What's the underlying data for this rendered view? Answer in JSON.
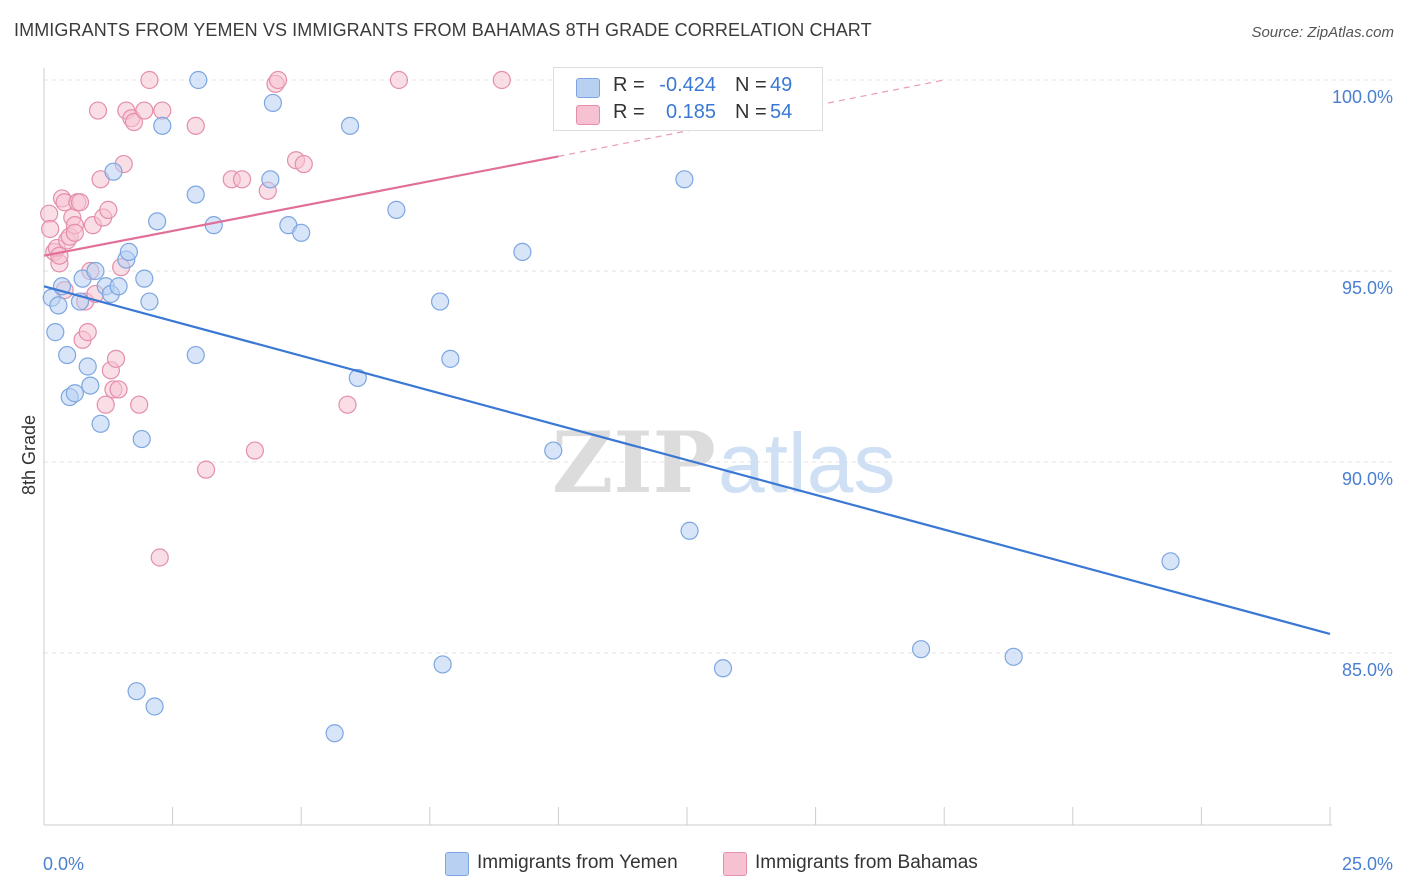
{
  "title": "IMMIGRANTS FROM YEMEN VS IMMIGRANTS FROM BAHAMAS 8TH GRADE CORRELATION CHART",
  "source": "Source: ZipAtlas.com",
  "watermark": {
    "zip": "ZIP",
    "atlas": "atlas"
  },
  "legend": [
    {
      "r_label": "R =",
      "r_value": "-0.424",
      "n_label": "N =",
      "n_value": "49",
      "fill": "#b8d0f2",
      "stroke": "#7da6e0"
    },
    {
      "r_label": "R =",
      "r_value": "0.185",
      "n_label": "N =",
      "n_value": "54",
      "fill": "#f6c2d2",
      "stroke": "#e48eab"
    }
  ],
  "bottom_legend": [
    "Immigrants from Yemen",
    "Immigrants from Bahamas"
  ],
  "colors": {
    "blue": "#3a78d4",
    "pink": "#e0709a",
    "blue_fill": "#b8d0f2",
    "pink_fill": "#f6c2d2",
    "tick_text": "#4a7fd0",
    "grid": "#e3e3e3"
  },
  "chart_data": {
    "type": "scatter",
    "title": "IMMIGRANTS FROM YEMEN VS IMMIGRANTS FROM BAHAMAS 8TH GRADE CORRELATION CHART",
    "xlabel": "",
    "ylabel": "8th Grade",
    "xlim": [
      0,
      25
    ],
    "ylim": [
      80,
      100.8
    ],
    "x_tick_labels": [
      "0.0%",
      "25.0%"
    ],
    "y_ticks": [
      85,
      90,
      95,
      100
    ],
    "y_tick_labels": [
      "85.0%",
      "90.0%",
      "95.0%",
      "100.0%"
    ],
    "series": [
      {
        "name": "Immigrants from Yemen",
        "r": -0.424,
        "n": 49,
        "trend": {
          "x": [
            0,
            25
          ],
          "y": [
            94.6,
            85.5
          ]
        },
        "points": [
          [
            0.15,
            94.3
          ],
          [
            0.22,
            93.4
          ],
          [
            0.28,
            94.1
          ],
          [
            0.35,
            94.6
          ],
          [
            0.45,
            92.8
          ],
          [
            0.5,
            91.7
          ],
          [
            0.6,
            91.8
          ],
          [
            0.7,
            94.2
          ],
          [
            0.75,
            94.8
          ],
          [
            0.85,
            92.5
          ],
          [
            0.9,
            92.0
          ],
          [
            1.0,
            95.0
          ],
          [
            1.1,
            91.0
          ],
          [
            1.2,
            94.6
          ],
          [
            1.3,
            94.4
          ],
          [
            1.35,
            97.6
          ],
          [
            1.45,
            94.6
          ],
          [
            1.6,
            95.3
          ],
          [
            1.65,
            95.5
          ],
          [
            1.9,
            90.6
          ],
          [
            1.95,
            94.8
          ],
          [
            2.05,
            94.2
          ],
          [
            2.2,
            96.3
          ],
          [
            2.3,
            98.8
          ],
          [
            2.95,
            97.0
          ],
          [
            2.95,
            92.8
          ],
          [
            3.0,
            100.0
          ],
          [
            3.3,
            96.2
          ],
          [
            4.4,
            97.4
          ],
          [
            4.45,
            99.4
          ],
          [
            4.75,
            96.2
          ],
          [
            5.0,
            96.0
          ],
          [
            5.95,
            98.8
          ],
          [
            6.1,
            92.2
          ],
          [
            6.85,
            96.6
          ],
          [
            7.7,
            94.2
          ],
          [
            7.9,
            92.7
          ],
          [
            9.3,
            95.5
          ],
          [
            9.9,
            90.3
          ],
          [
            12.45,
            97.4
          ],
          [
            12.55,
            88.2
          ],
          [
            1.8,
            84.0
          ],
          [
            2.15,
            83.6
          ],
          [
            5.65,
            82.9
          ],
          [
            7.75,
            84.7
          ],
          [
            13.2,
            84.6
          ],
          [
            17.05,
            85.1
          ],
          [
            18.85,
            84.9
          ],
          [
            21.9,
            87.4
          ]
        ]
      },
      {
        "name": "Immigrants from Bahamas",
        "r": 0.185,
        "n": 54,
        "trend": {
          "x": [
            0,
            10
          ],
          "y": [
            95.4,
            98.0
          ]
        },
        "trend_dashed": {
          "x": [
            10,
            17.5
          ],
          "y": [
            98.0,
            100.0
          ]
        },
        "points": [
          [
            0.1,
            96.5
          ],
          [
            0.12,
            96.1
          ],
          [
            0.2,
            95.5
          ],
          [
            0.25,
            95.6
          ],
          [
            0.3,
            95.2
          ],
          [
            0.35,
            96.9
          ],
          [
            0.4,
            96.8
          ],
          [
            0.45,
            95.8
          ],
          [
            0.5,
            95.9
          ],
          [
            0.55,
            96.4
          ],
          [
            0.6,
            96.2
          ],
          [
            0.65,
            96.8
          ],
          [
            0.7,
            96.8
          ],
          [
            0.75,
            93.2
          ],
          [
            0.8,
            94.2
          ],
          [
            0.85,
            93.4
          ],
          [
            0.9,
            95.0
          ],
          [
            0.95,
            96.2
          ],
          [
            1.0,
            94.4
          ],
          [
            1.05,
            99.2
          ],
          [
            1.1,
            97.4
          ],
          [
            1.15,
            96.4
          ],
          [
            1.2,
            91.5
          ],
          [
            1.3,
            92.4
          ],
          [
            1.4,
            92.7
          ],
          [
            1.35,
            91.9
          ],
          [
            1.45,
            91.9
          ],
          [
            1.5,
            95.1
          ],
          [
            1.55,
            97.8
          ],
          [
            1.6,
            99.2
          ],
          [
            1.7,
            99.0
          ],
          [
            1.75,
            98.9
          ],
          [
            1.85,
            91.5
          ],
          [
            1.95,
            99.2
          ],
          [
            2.05,
            100.0
          ],
          [
            2.3,
            99.2
          ],
          [
            2.25,
            87.5
          ],
          [
            2.95,
            98.8
          ],
          [
            3.15,
            89.8
          ],
          [
            3.65,
            97.4
          ],
          [
            3.85,
            97.4
          ],
          [
            4.1,
            90.3
          ],
          [
            4.35,
            97.1
          ],
          [
            4.5,
            99.9
          ],
          [
            4.55,
            100.0
          ],
          [
            4.9,
            97.9
          ],
          [
            5.05,
            97.8
          ],
          [
            5.9,
            91.5
          ],
          [
            6.9,
            100.0
          ],
          [
            8.9,
            100.0
          ],
          [
            1.25,
            96.6
          ],
          [
            0.3,
            95.4
          ],
          [
            0.4,
            94.5
          ],
          [
            0.6,
            96.0
          ]
        ]
      }
    ]
  }
}
